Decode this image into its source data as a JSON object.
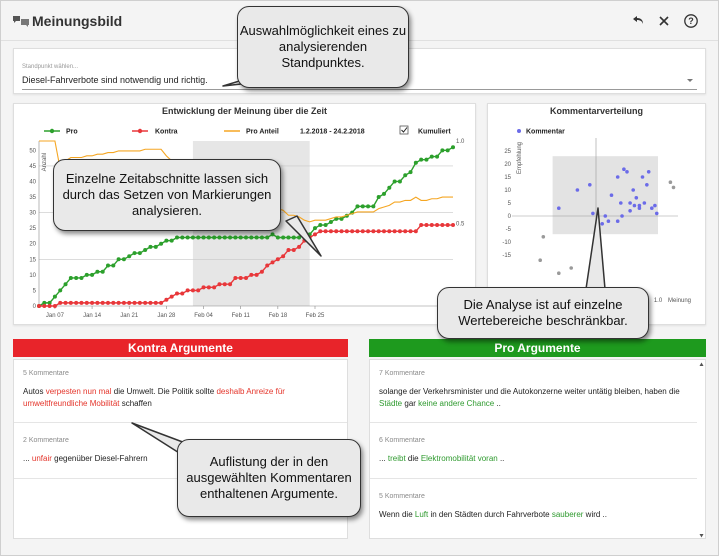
{
  "app": {
    "title": "Meinungsbild",
    "icons": [
      "undo-icon",
      "close-icon",
      "help-icon"
    ]
  },
  "standpoint": {
    "label": "Standpunkt wählen...",
    "value": "Diesel-Fahrverbote sind notwendig und richtig."
  },
  "timeline": {
    "title": "Entwicklung der Meinung über die Zeit",
    "legend": {
      "pro": "Pro",
      "kontra": "Kontra",
      "pro_anteil": "Pro Anteil",
      "range": "1.2.2018 - 24.2.2018",
      "cumulative": "Kumuliert"
    },
    "colors": {
      "pro": "#2ca02c",
      "kontra": "#e8373a",
      "pro_anteil": "#f5a623"
    }
  },
  "comment_distribution": {
    "title": "Kommentarverteilung",
    "legend": "Kommentar",
    "ylabel": "Empfehlung",
    "xlabel": "Meinung",
    "color": "#6b6be8"
  },
  "chart_data": [
    {
      "type": "line",
      "title": "Entwicklung der Meinung über die Zeit",
      "ylabel": "Anzahl",
      "x_ticks": [
        "Jan 07",
        "Jan 14",
        "Jan 21",
        "Jan 28",
        "Feb 04",
        "Feb 11",
        "Feb 18",
        "Feb 25"
      ],
      "y_ticks": [
        0,
        5,
        10,
        15,
        20,
        25,
        30,
        35,
        40,
        45,
        50
      ],
      "y2_ticks": [
        0.5,
        1.0
      ],
      "ylim": [
        0,
        53
      ],
      "highlight_range": [
        "Feb 02",
        "Feb 24"
      ],
      "series": [
        {
          "name": "Pro",
          "values": [
            0,
            1,
            1,
            3,
            5,
            7,
            9,
            9,
            9,
            10,
            10,
            11,
            11,
            13,
            13,
            15,
            15,
            16,
            17,
            17,
            18,
            19,
            19,
            20,
            21,
            21,
            22,
            22,
            22,
            22,
            22,
            22,
            22,
            22,
            22,
            22,
            22,
            22,
            22,
            22,
            22,
            22,
            22,
            22,
            23,
            22,
            22,
            22,
            22,
            22,
            23,
            23,
            25,
            26,
            26,
            27,
            28,
            28,
            29,
            30,
            32,
            32,
            32,
            32,
            35,
            36,
            38,
            40,
            40,
            42,
            43,
            46,
            47,
            47,
            48,
            48,
            50,
            50,
            51
          ]
        },
        {
          "name": "Kontra",
          "values": [
            0,
            0,
            0,
            0,
            1,
            1,
            1,
            1,
            1,
            1,
            1,
            1,
            1,
            1,
            1,
            1,
            1,
            1,
            1,
            1,
            1,
            1,
            1,
            1,
            2,
            3,
            4,
            4,
            5,
            5,
            5,
            6,
            6,
            6,
            7,
            7,
            7,
            9,
            9,
            9,
            10,
            10,
            11,
            13,
            14,
            15,
            16,
            18,
            18,
            19,
            21,
            22,
            23,
            24,
            24,
            24,
            24,
            24,
            24,
            24,
            24,
            24,
            24,
            24,
            24,
            24,
            24,
            24,
            24,
            24,
            24,
            24,
            26,
            26,
            26,
            26,
            26,
            26,
            26
          ]
        },
        {
          "name": "Pro Anteil",
          "values": [
            1.0,
            1.0,
            1.0,
            1.0,
            0.83,
            0.88,
            0.9,
            0.9,
            0.9,
            0.91,
            0.91,
            0.92,
            0.92,
            0.93,
            0.93,
            0.94,
            0.94,
            0.94,
            0.94,
            0.94,
            0.95,
            0.95,
            0.95,
            0.95,
            0.91,
            0.88,
            0.85,
            0.85,
            0.81,
            0.81,
            0.81,
            0.79,
            0.79,
            0.79,
            0.76,
            0.76,
            0.76,
            0.71,
            0.71,
            0.71,
            0.69,
            0.69,
            0.67,
            0.63,
            0.62,
            0.59,
            0.58,
            0.55,
            0.55,
            0.54,
            0.52,
            0.51,
            0.52,
            0.52,
            0.52,
            0.53,
            0.54,
            0.54,
            0.55,
            0.56,
            0.57,
            0.57,
            0.57,
            0.57,
            0.59,
            0.6,
            0.61,
            0.63,
            0.63,
            0.64,
            0.64,
            0.66,
            0.64,
            0.64,
            0.65,
            0.65,
            0.66,
            0.66,
            0.66
          ]
        }
      ]
    },
    {
      "type": "scatter",
      "title": "Kommentarverteilung",
      "xlabel": "Meinung",
      "ylabel": "Empfehlung",
      "y_ticks": [
        25,
        20,
        15,
        10,
        5,
        0,
        -5,
        -10,
        -15
      ],
      "x_ticks_visible": [
        0.5,
        1.0
      ],
      "selection": {
        "x": [
          -0.7,
          1.0
        ],
        "y": [
          -7,
          23
        ]
      },
      "series": [
        {
          "name": "Kommentar",
          "points": [
            [
              -0.6,
              3
            ],
            [
              -0.3,
              10
            ],
            [
              -0.1,
              12
            ],
            [
              -0.05,
              1
            ],
            [
              0.1,
              -3
            ],
            [
              0.15,
              0
            ],
            [
              0.2,
              -2
            ],
            [
              0.25,
              8
            ],
            [
              0.35,
              15
            ],
            [
              0.4,
              5
            ],
            [
              0.45,
              18
            ],
            [
              0.5,
              17
            ],
            [
              0.55,
              2
            ],
            [
              0.6,
              10
            ],
            [
              0.65,
              7
            ],
            [
              0.7,
              4
            ],
            [
              0.75,
              15
            ],
            [
              0.78,
              5
            ],
            [
              0.82,
              12
            ],
            [
              0.85,
              17
            ],
            [
              0.9,
              3
            ],
            [
              0.95,
              4
            ],
            [
              0.98,
              1
            ],
            [
              0.55,
              5
            ],
            [
              0.62,
              4
            ],
            [
              0.7,
              3
            ],
            [
              0.35,
              -2
            ],
            [
              0.42,
              0
            ]
          ]
        },
        {
          "name": "excluded",
          "points": [
            [
              -0.9,
              -17
            ],
            [
              -0.6,
              -22
            ],
            [
              -0.4,
              -20
            ],
            [
              1.2,
              13
            ],
            [
              1.25,
              11
            ],
            [
              -0.85,
              -8
            ]
          ]
        }
      ]
    }
  ],
  "kontra": {
    "header": "Kontra Argumente",
    "color": "#e8242a",
    "items": [
      {
        "count": "5 Kommentare",
        "parts": [
          {
            "t": "Autos ",
            "c": ""
          },
          {
            "t": "verpesten nun mal",
            "c": "red"
          },
          {
            "t": " die Umwelt. Die Politik sollte ",
            "c": ""
          },
          {
            "t": "deshalb Anreize für umweltfreundliche Mobilität",
            "c": "red"
          },
          {
            "t": " schaffen",
            "c": ""
          }
        ]
      },
      {
        "count": "2 Kommentare",
        "parts": [
          {
            "t": "... ",
            "c": ""
          },
          {
            "t": "unfair",
            "c": "red"
          },
          {
            "t": " gegenüber Diesel-Fahrern",
            "c": ""
          }
        ]
      }
    ]
  },
  "pro": {
    "header": "Pro Argumente",
    "color": "#1e9a1e",
    "items": [
      {
        "count": "7 Kommentare",
        "parts": [
          {
            "t": "solange der Verkehrsminister und die Autokonzerne weiter untätig bleiben, haben die ",
            "c": ""
          },
          {
            "t": "Städte",
            "c": "green"
          },
          {
            "t": " gar ",
            "c": ""
          },
          {
            "t": "keine andere Chance",
            "c": "green"
          },
          {
            "t": " ..",
            "c": ""
          }
        ]
      },
      {
        "count": "6 Kommentare",
        "parts": [
          {
            "t": "... ",
            "c": ""
          },
          {
            "t": "treibt",
            "c": "green"
          },
          {
            "t": " die ",
            "c": ""
          },
          {
            "t": "Elektromobilität voran",
            "c": "green"
          },
          {
            "t": " ..",
            "c": ""
          }
        ]
      },
      {
        "count": "5 Kommentare",
        "parts": [
          {
            "t": "Wenn die ",
            "c": ""
          },
          {
            "t": "Luft",
            "c": "green"
          },
          {
            "t": " in den Städten durch Fahrverbote ",
            "c": ""
          },
          {
            "t": "sauberer",
            "c": "green"
          },
          {
            "t": " wird ..",
            "c": ""
          }
        ]
      }
    ]
  },
  "callouts": {
    "standpoint": "Auswahlmöglichkeit eines zu analysierenden Standpunktes.",
    "timeline": "Einzelne Zeitabschnitte lassen sich durch das Setzen von Markierungen analysieren.",
    "scatter": "Die Analyse ist auf einzelne Wertebereiche beschränkbar.",
    "arguments": "Auflistung der in den ausgewählten Kommentaren enthaltenen Argumente."
  }
}
